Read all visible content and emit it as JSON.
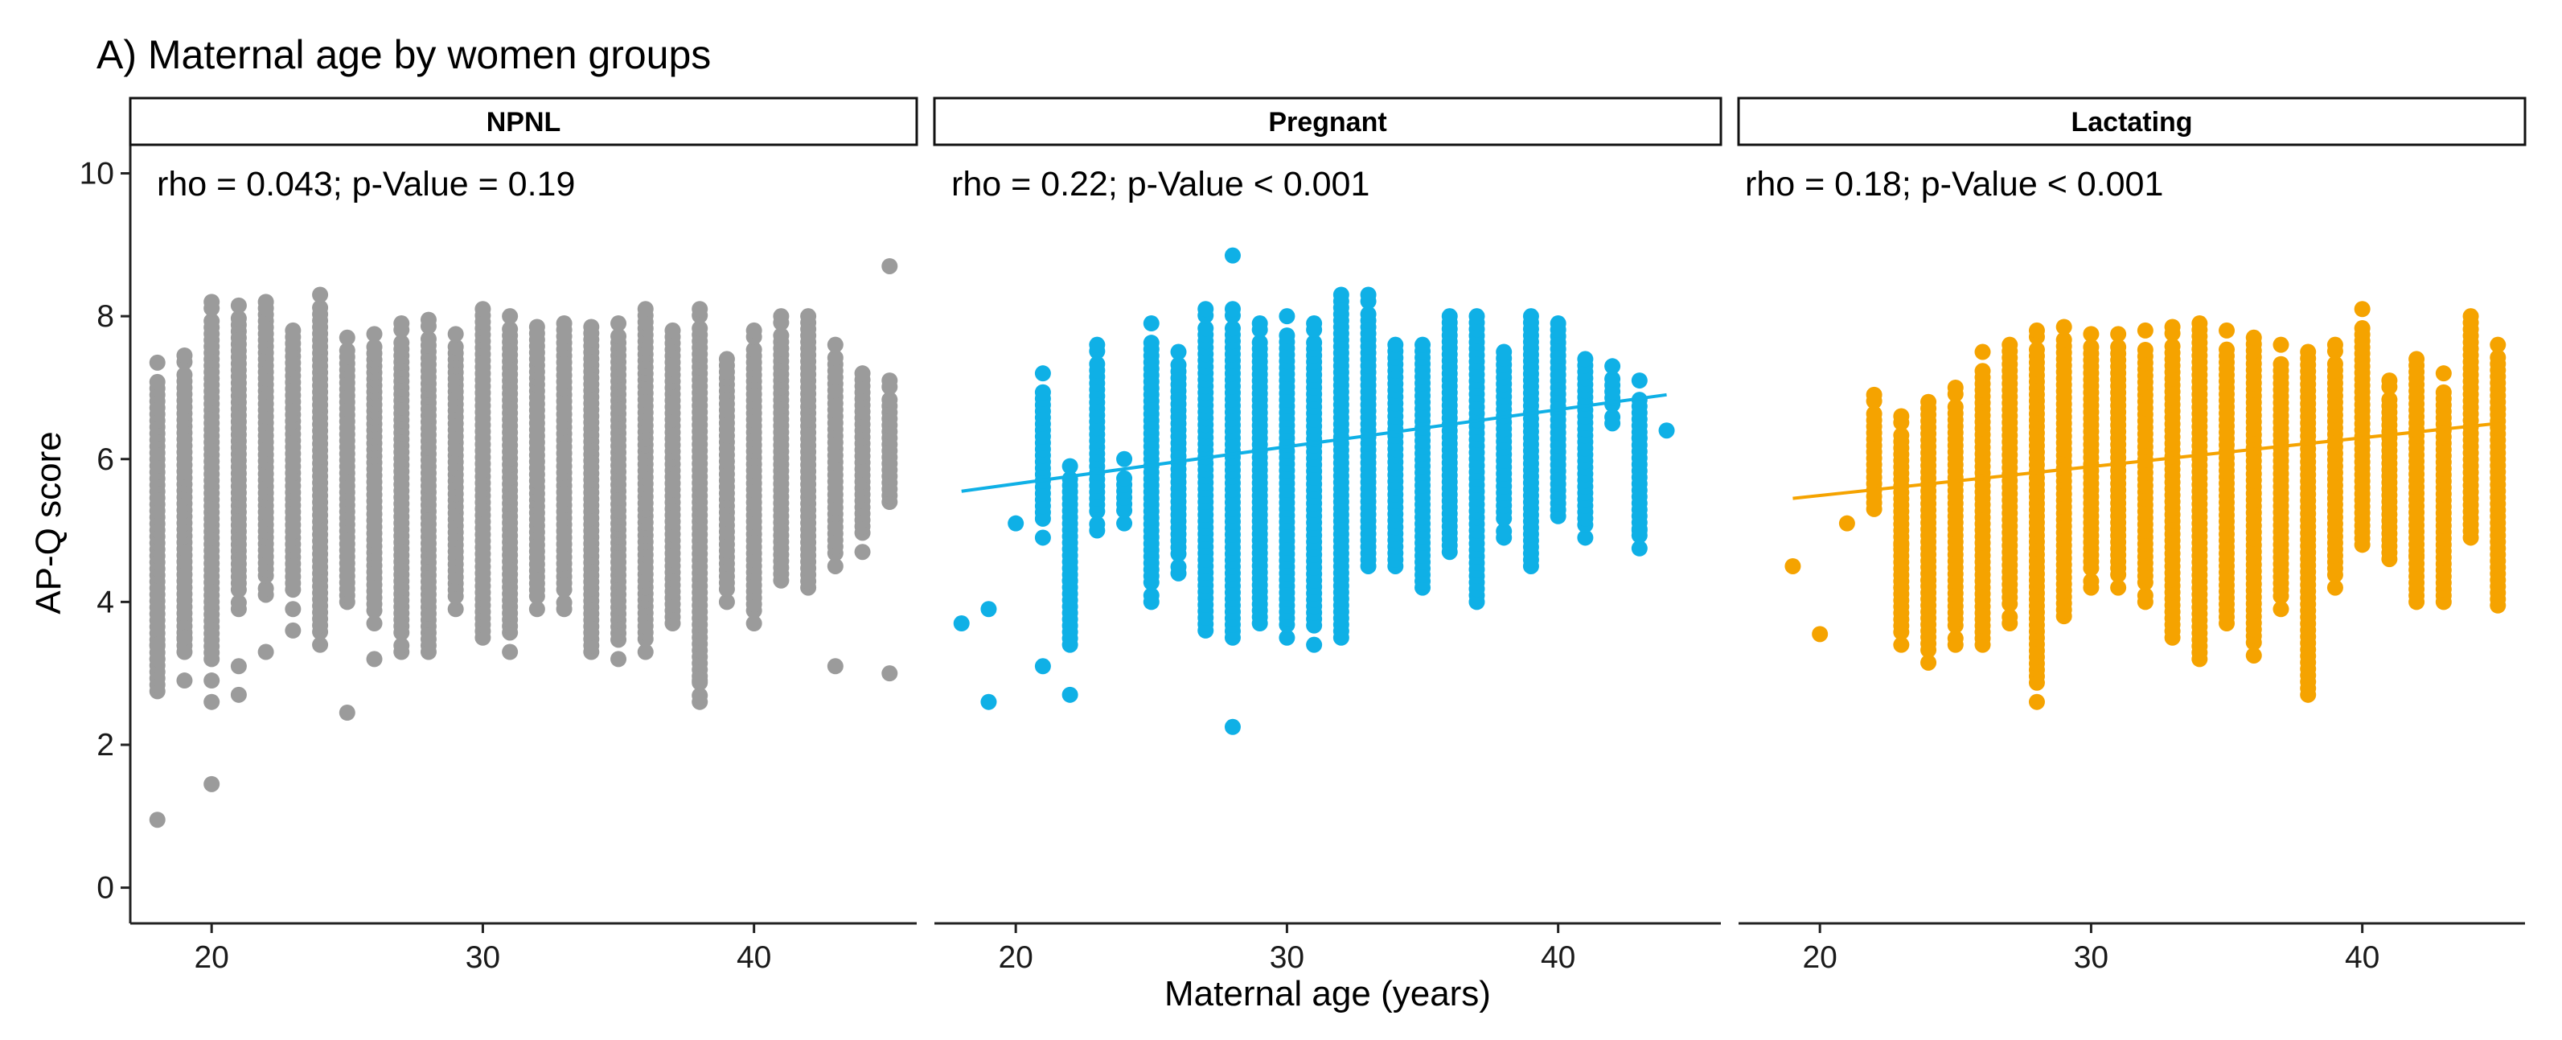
{
  "chart_data": {
    "type": "scatter",
    "title": "A) Maternal age by women groups",
    "xlabel": "Maternal age (years)",
    "ylabel": "AP-Q score",
    "xlim": [
      17,
      46
    ],
    "ylim": [
      -0.5,
      10.4
    ],
    "x_ticks": [
      20,
      30,
      40
    ],
    "y_ticks": [
      0,
      2,
      4,
      6,
      8,
      10
    ],
    "grid": false,
    "panels": [
      {
        "name": "NPNL",
        "color": "#9b9b9b",
        "annotation": "rho = 0.043; p-Value = 0.19",
        "trend": null,
        "columns": [
          {
            "x": 18,
            "lo": 2.75,
            "hi": 7.35,
            "extra": [
              0.95,
              3.2,
              3.4
            ]
          },
          {
            "x": 19,
            "lo": 3.3,
            "hi": 7.45,
            "extra": [
              2.9,
              3.5
            ]
          },
          {
            "x": 20,
            "lo": 3.2,
            "hi": 8.2,
            "extra": [
              1.45,
              2.6,
              2.9
            ]
          },
          {
            "x": 21,
            "lo": 3.9,
            "hi": 8.15,
            "extra": [
              2.7,
              3.1
            ]
          },
          {
            "x": 22,
            "lo": 4.1,
            "hi": 8.2,
            "extra": [
              3.3
            ]
          },
          {
            "x": 23,
            "lo": 3.9,
            "hi": 7.8,
            "extra": [
              3.6
            ]
          },
          {
            "x": 24,
            "lo": 3.4,
            "hi": 8.3,
            "extra": []
          },
          {
            "x": 25,
            "lo": 4.0,
            "hi": 7.7,
            "extra": [
              2.45
            ]
          },
          {
            "x": 26,
            "lo": 3.7,
            "hi": 7.75,
            "extra": [
              3.2
            ]
          },
          {
            "x": 27,
            "lo": 3.3,
            "hi": 7.9,
            "extra": []
          },
          {
            "x": 28,
            "lo": 3.3,
            "hi": 7.95,
            "extra": []
          },
          {
            "x": 29,
            "lo": 3.9,
            "hi": 7.75,
            "extra": []
          },
          {
            "x": 30,
            "lo": 3.5,
            "hi": 8.1,
            "extra": []
          },
          {
            "x": 31,
            "lo": 3.3,
            "hi": 8.0,
            "extra": []
          },
          {
            "x": 32,
            "lo": 3.9,
            "hi": 7.85,
            "extra": []
          },
          {
            "x": 33,
            "lo": 3.9,
            "hi": 7.9,
            "extra": []
          },
          {
            "x": 34,
            "lo": 3.3,
            "hi": 7.85,
            "extra": []
          },
          {
            "x": 35,
            "lo": 3.2,
            "hi": 7.9,
            "extra": []
          },
          {
            "x": 36,
            "lo": 3.3,
            "hi": 8.1,
            "extra": []
          },
          {
            "x": 37,
            "lo": 3.7,
            "hi": 7.8,
            "extra": []
          },
          {
            "x": 38,
            "lo": 2.6,
            "hi": 8.1,
            "extra": [
              2.9
            ]
          },
          {
            "x": 39,
            "lo": 4.0,
            "hi": 7.4,
            "extra": []
          },
          {
            "x": 40,
            "lo": 3.7,
            "hi": 7.8,
            "extra": []
          },
          {
            "x": 41,
            "lo": 4.3,
            "hi": 8.0,
            "extra": []
          },
          {
            "x": 42,
            "lo": 4.2,
            "hi": 8.0,
            "extra": []
          },
          {
            "x": 43,
            "lo": 4.5,
            "hi": 7.6,
            "extra": [
              3.1
            ]
          },
          {
            "x": 44,
            "lo": 4.7,
            "hi": 7.2,
            "extra": []
          },
          {
            "x": 45,
            "lo": 5.4,
            "hi": 7.1,
            "extra": [
              8.7,
              3.0
            ]
          }
        ]
      },
      {
        "name": "Pregnant",
        "color": "#0fb0e6",
        "annotation": "rho = 0.22; p-Value < 0.001",
        "trend": {
          "x0": 18,
          "y0": 5.55,
          "x1": 44,
          "y1": 6.9
        },
        "columns": [
          {
            "x": 18,
            "lo": 3.7,
            "hi": 3.7,
            "extra": []
          },
          {
            "x": 19,
            "lo": 2.6,
            "hi": 2.6,
            "extra": [
              3.9
            ]
          },
          {
            "x": 20,
            "lo": 5.1,
            "hi": 5.1,
            "extra": []
          },
          {
            "x": 21,
            "lo": 4.9,
            "hi": 7.2,
            "extra": [
              3.1
            ]
          },
          {
            "x": 22,
            "lo": 3.4,
            "hi": 5.9,
            "extra": [
              2.7,
              4.3
            ]
          },
          {
            "x": 23,
            "lo": 5.0,
            "hi": 7.6,
            "extra": []
          },
          {
            "x": 24,
            "lo": 5.1,
            "hi": 6.0,
            "extra": []
          },
          {
            "x": 25,
            "lo": 4.0,
            "hi": 7.9,
            "extra": []
          },
          {
            "x": 26,
            "lo": 4.4,
            "hi": 7.5,
            "extra": []
          },
          {
            "x": 27,
            "lo": 3.6,
            "hi": 8.1,
            "extra": []
          },
          {
            "x": 28,
            "lo": 3.5,
            "hi": 8.1,
            "extra": [
              8.85,
              2.25
            ]
          },
          {
            "x": 29,
            "lo": 3.7,
            "hi": 7.9,
            "extra": []
          },
          {
            "x": 30,
            "lo": 3.5,
            "hi": 8.0,
            "extra": []
          },
          {
            "x": 31,
            "lo": 3.4,
            "hi": 7.9,
            "extra": []
          },
          {
            "x": 32,
            "lo": 3.5,
            "hi": 8.3,
            "extra": []
          },
          {
            "x": 33,
            "lo": 4.5,
            "hi": 8.3,
            "extra": []
          },
          {
            "x": 34,
            "lo": 4.5,
            "hi": 7.6,
            "extra": []
          },
          {
            "x": 35,
            "lo": 4.2,
            "hi": 7.6,
            "extra": []
          },
          {
            "x": 36,
            "lo": 4.7,
            "hi": 8.0,
            "extra": []
          },
          {
            "x": 37,
            "lo": 4.0,
            "hi": 8.0,
            "extra": []
          },
          {
            "x": 38,
            "lo": 4.9,
            "hi": 7.5,
            "extra": []
          },
          {
            "x": 39,
            "lo": 4.5,
            "hi": 8.0,
            "extra": []
          },
          {
            "x": 40,
            "lo": 5.2,
            "hi": 7.9,
            "extra": []
          },
          {
            "x": 41,
            "lo": 4.9,
            "hi": 7.4,
            "extra": []
          },
          {
            "x": 42,
            "lo": 6.5,
            "hi": 7.3,
            "extra": []
          },
          {
            "x": 43,
            "lo": 4.75,
            "hi": 7.1,
            "extra": [
              5.0,
              6.3
            ]
          },
          {
            "x": 44,
            "lo": 6.4,
            "hi": 6.4,
            "extra": []
          }
        ]
      },
      {
        "name": "Lactating",
        "color": "#f5a300",
        "annotation": "rho = 0.18; p-Value < 0.001",
        "trend": {
          "x0": 19,
          "y0": 5.45,
          "x1": 45,
          "y1": 6.5
        },
        "columns": [
          {
            "x": 19,
            "lo": 4.5,
            "hi": 4.5,
            "extra": []
          },
          {
            "x": 20,
            "lo": 3.55,
            "hi": 3.55,
            "extra": []
          },
          {
            "x": 21,
            "lo": 5.1,
            "hi": 5.1,
            "extra": []
          },
          {
            "x": 22,
            "lo": 5.3,
            "hi": 6.9,
            "extra": []
          },
          {
            "x": 23,
            "lo": 3.4,
            "hi": 6.6,
            "extra": [
              4.8,
              4.2
            ]
          },
          {
            "x": 24,
            "lo": 3.15,
            "hi": 6.8,
            "extra": [
              4.3
            ]
          },
          {
            "x": 25,
            "lo": 3.4,
            "hi": 7.0,
            "extra": []
          },
          {
            "x": 26,
            "lo": 3.4,
            "hi": 7.5,
            "extra": []
          },
          {
            "x": 27,
            "lo": 3.7,
            "hi": 7.6,
            "extra": []
          },
          {
            "x": 28,
            "lo": 2.6,
            "hi": 7.8,
            "extra": []
          },
          {
            "x": 29,
            "lo": 3.8,
            "hi": 7.85,
            "extra": []
          },
          {
            "x": 30,
            "lo": 4.2,
            "hi": 7.75,
            "extra": []
          },
          {
            "x": 31,
            "lo": 4.2,
            "hi": 7.75,
            "extra": []
          },
          {
            "x": 32,
            "lo": 4.0,
            "hi": 7.8,
            "extra": []
          },
          {
            "x": 33,
            "lo": 3.5,
            "hi": 7.85,
            "extra": []
          },
          {
            "x": 34,
            "lo": 3.2,
            "hi": 7.9,
            "extra": []
          },
          {
            "x": 35,
            "lo": 3.7,
            "hi": 7.8,
            "extra": []
          },
          {
            "x": 36,
            "lo": 3.25,
            "hi": 7.7,
            "extra": []
          },
          {
            "x": 37,
            "lo": 3.9,
            "hi": 7.6,
            "extra": []
          },
          {
            "x": 38,
            "lo": 2.7,
            "hi": 7.5,
            "extra": []
          },
          {
            "x": 39,
            "lo": 4.2,
            "hi": 7.6,
            "extra": []
          },
          {
            "x": 40,
            "lo": 4.8,
            "hi": 8.1,
            "extra": []
          },
          {
            "x": 41,
            "lo": 4.6,
            "hi": 7.1,
            "extra": []
          },
          {
            "x": 42,
            "lo": 4.0,
            "hi": 7.4,
            "extra": [
              4.65
            ]
          },
          {
            "x": 43,
            "lo": 4.0,
            "hi": 7.2,
            "extra": []
          },
          {
            "x": 44,
            "lo": 4.9,
            "hi": 8.0,
            "extra": []
          },
          {
            "x": 45,
            "lo": 3.95,
            "hi": 7.6,
            "extra": [
              6.7
            ]
          }
        ]
      }
    ]
  }
}
